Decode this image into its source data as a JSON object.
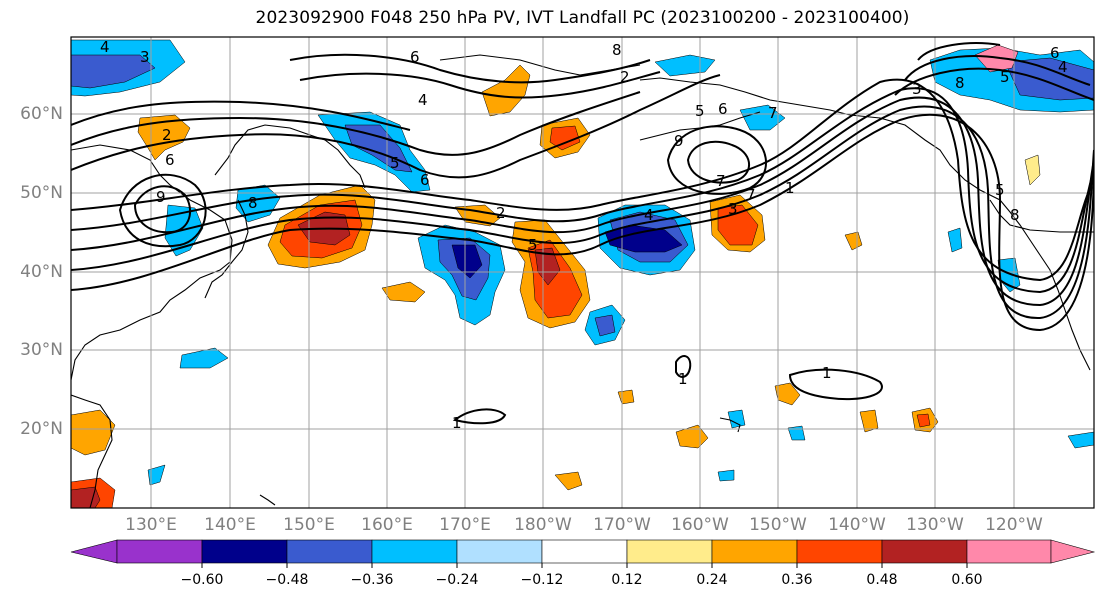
{
  "title": "2023092900 F048 250 hPa PV, IVT Landfall PC (2023100200 - 2023100400)",
  "latitude_labels": [
    "60°N",
    "50°N",
    "40°N",
    "30°N",
    "20°N"
  ],
  "longitude_labels": [
    "130°E",
    "140°E",
    "150°E",
    "160°E",
    "170°E",
    "180°W",
    "170°W",
    "160°W",
    "150°W",
    "140°W",
    "130°W",
    "120°W"
  ],
  "colorbar": {
    "colors": [
      "#9932cc",
      "#00008b",
      "#3a5bcf",
      "#00bfff",
      "#b0e0ff",
      "#ffffff",
      "#ffec8b",
      "#ffa500",
      "#ff4500",
      "#b22222",
      "#ff88aa"
    ],
    "tick_labels": [
      "−0.60",
      "−0.48",
      "−0.36",
      "−0.24",
      "−0.12",
      "0.12",
      "0.24",
      "0.36",
      "0.48",
      "0.60"
    ]
  },
  "contour_labels": [
    "4",
    "3",
    "2",
    "6",
    "9",
    "8",
    "5",
    "2",
    "5",
    "4",
    "6",
    "5",
    "7",
    "6",
    "7",
    "1",
    "8",
    "9",
    "2",
    "7",
    "3",
    "4",
    "8",
    "1",
    "1",
    "1",
    "3",
    "5",
    "8",
    "6",
    "4",
    "5",
    "6"
  ],
  "colors": {
    "grid": "#a0a0a0",
    "contour": "#000000"
  }
}
